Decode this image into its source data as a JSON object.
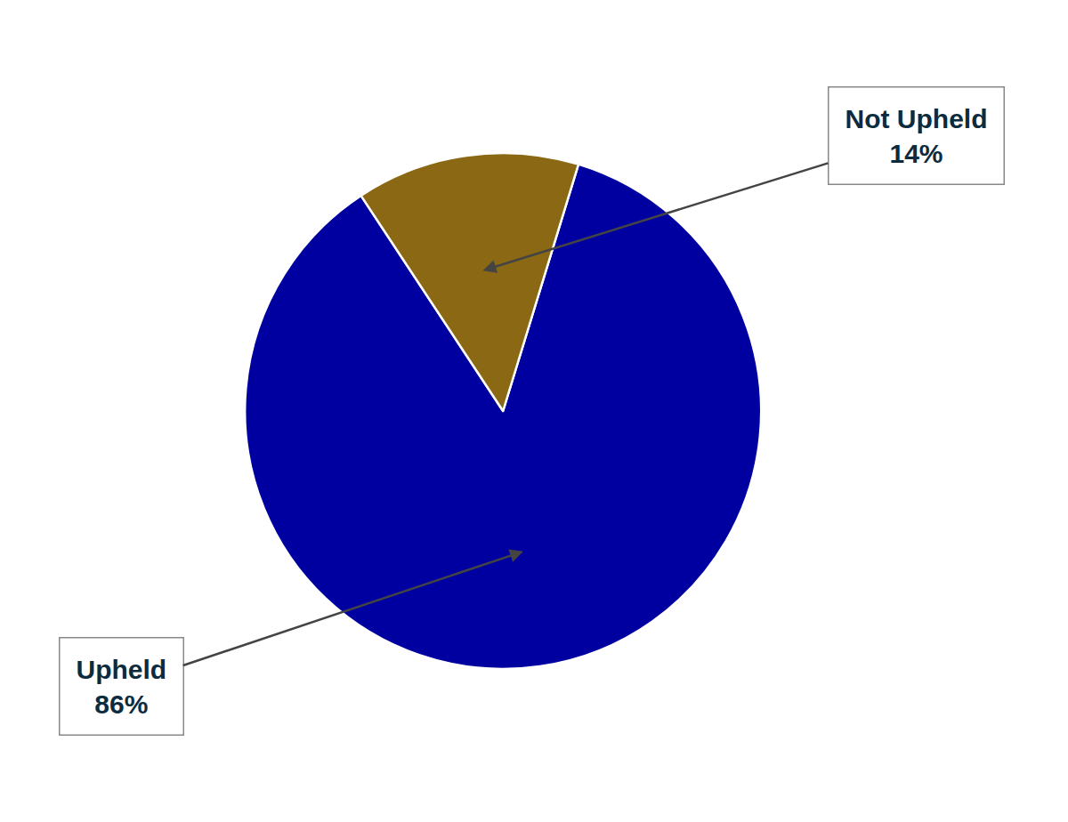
{
  "chart_data": {
    "type": "pie",
    "categories": [
      "Upheld",
      "Not Upheld"
    ],
    "values": [
      86,
      14
    ],
    "value_labels": [
      "86%",
      "14%"
    ],
    "colors": [
      "#0000A0",
      "#8B6914"
    ],
    "data_labels": true
  }
}
